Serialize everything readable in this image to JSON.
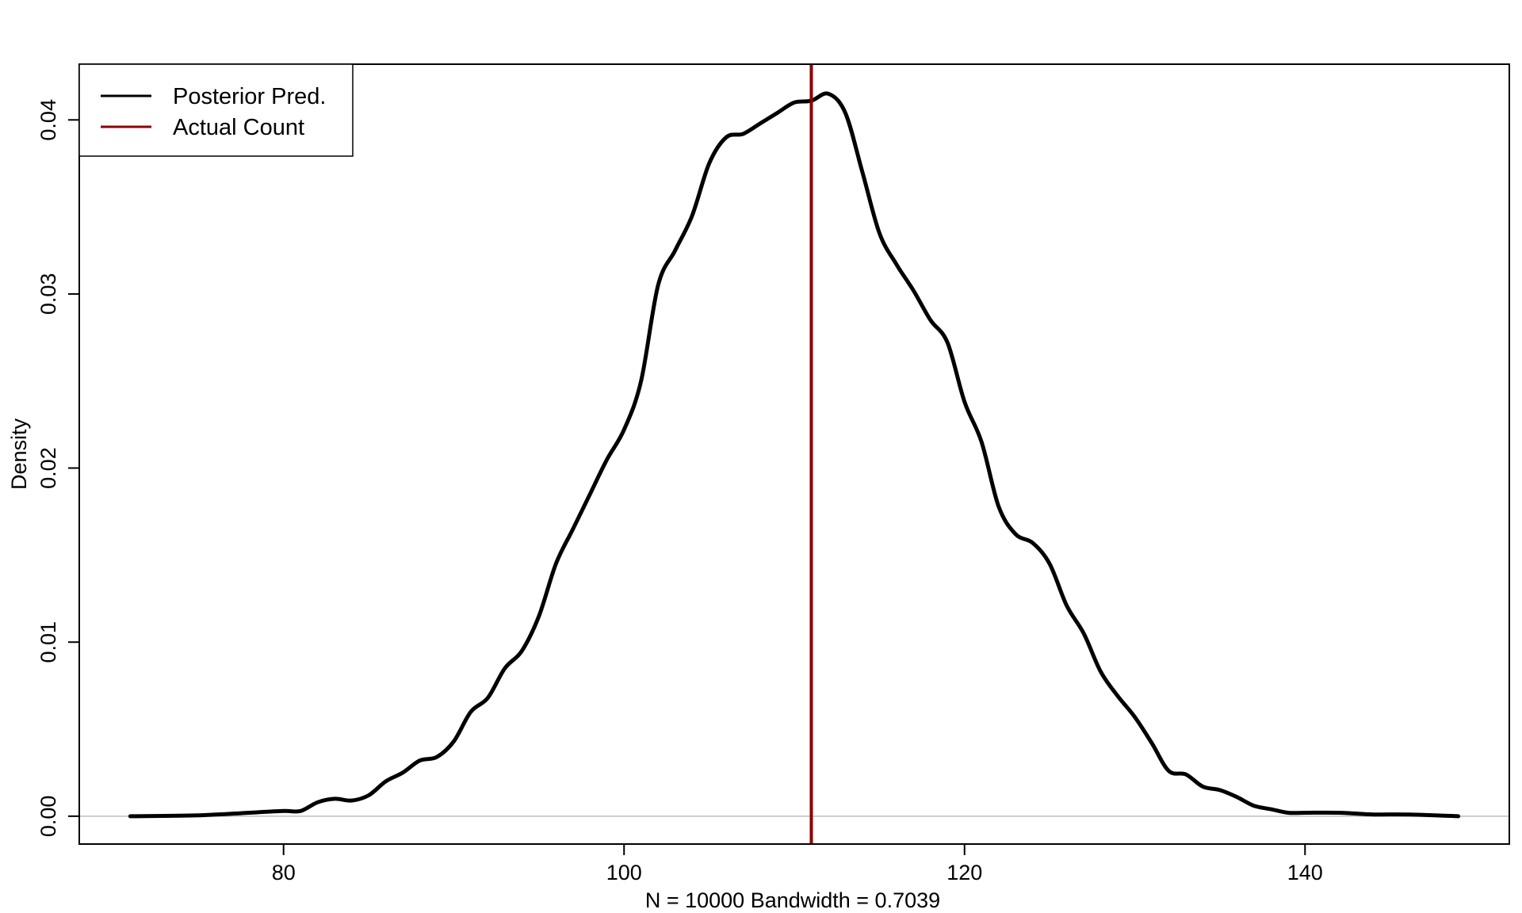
{
  "chart_data": {
    "type": "line",
    "title": "",
    "xlabel": "N = 10000   Bandwidth = 0.7039",
    "ylabel": "Density",
    "xlim": [
      68,
      152
    ],
    "ylim": [
      -0.0016,
      0.0432
    ],
    "x_ticks": [
      {
        "value": 80,
        "label": "80"
      },
      {
        "value": 100,
        "label": "100"
      },
      {
        "value": 120,
        "label": "120"
      },
      {
        "value": 140,
        "label": "140"
      }
    ],
    "y_ticks": [
      {
        "value": 0,
        "label": "0.00"
      },
      {
        "value": 0.01,
        "label": "0.01"
      },
      {
        "value": 0.02,
        "label": "0.02"
      },
      {
        "value": 0.03,
        "label": "0.03"
      },
      {
        "value": 0.04,
        "label": "0.04"
      }
    ],
    "zero_line": {
      "value": 0,
      "color": "#bebebe"
    },
    "series": [
      {
        "name": "Posterior Pred.",
        "color": "#000000",
        "x": [
          71,
          75,
          78,
          80,
          81,
          82,
          83,
          84,
          85,
          86,
          87,
          88,
          89,
          90,
          91,
          92,
          93,
          94,
          95,
          96,
          97,
          98,
          99,
          100,
          101,
          102,
          103,
          104,
          105,
          106,
          107,
          108,
          109,
          110,
          111,
          112,
          113,
          114,
          115,
          116,
          117,
          118,
          119,
          120,
          121,
          122,
          123,
          124,
          125,
          126,
          127,
          128,
          129,
          130,
          131,
          132,
          133,
          134,
          135,
          136,
          137,
          138,
          139,
          140,
          142,
          144,
          146,
          149
        ],
        "y": [
          0.0,
          5e-05,
          0.0002,
          0.0003,
          0.0003,
          0.0008,
          0.001,
          0.0009,
          0.0012,
          0.002,
          0.0025,
          0.0032,
          0.0034,
          0.0043,
          0.006,
          0.0068,
          0.0085,
          0.0095,
          0.0115,
          0.0145,
          0.0165,
          0.0185,
          0.0205,
          0.0222,
          0.025,
          0.0305,
          0.0325,
          0.0345,
          0.0375,
          0.039,
          0.0392,
          0.0398,
          0.0404,
          0.041,
          0.0411,
          0.0415,
          0.0404,
          0.037,
          0.0335,
          0.0317,
          0.0302,
          0.0285,
          0.0272,
          0.0238,
          0.0215,
          0.0178,
          0.0162,
          0.0157,
          0.0145,
          0.0121,
          0.0105,
          0.0083,
          0.0069,
          0.0057,
          0.0042,
          0.0026,
          0.0024,
          0.0017,
          0.0015,
          0.0011,
          0.0006,
          0.0004,
          0.0002,
          0.0002,
          0.0002,
          0.0001,
          0.0001,
          0.0
        ]
      }
    ],
    "vlines": [
      {
        "name": "Actual Count",
        "x": 111,
        "color": "#8b0000"
      }
    ],
    "legend": {
      "position": "top-left",
      "entries": [
        {
          "label": "Posterior Pred.",
          "color": "#000000"
        },
        {
          "label": "Actual Count",
          "color": "#8b0000"
        }
      ]
    }
  }
}
